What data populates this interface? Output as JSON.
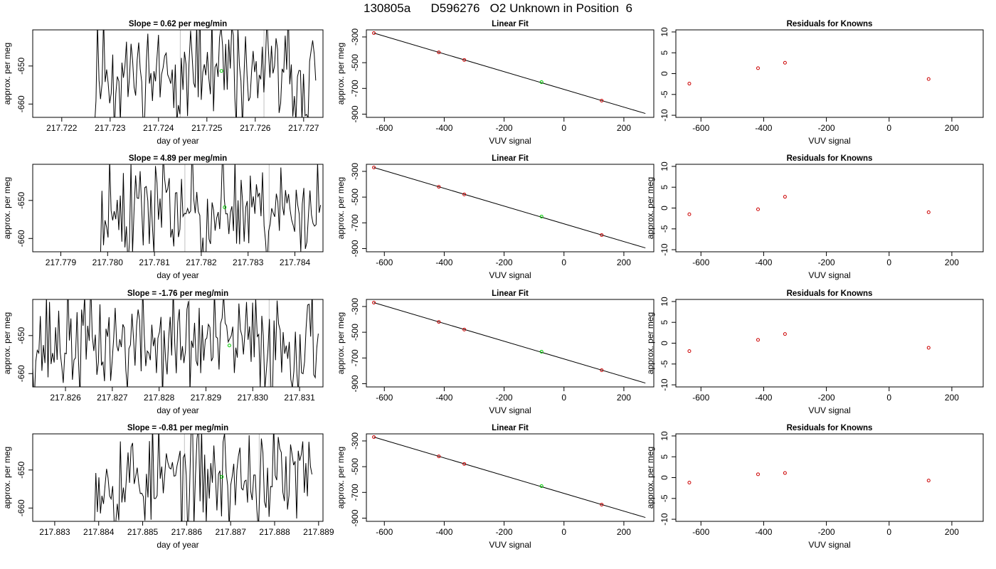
{
  "page": {
    "title": "130805a      D596276   O2 Unknown in Position  6"
  },
  "colors": {
    "trace": "#000000",
    "known_point": "#cc0000",
    "unknown_point": "#00cc00",
    "marker_line": "#c0c0c0"
  },
  "chart_data": [
    {
      "type": "line",
      "title": "Slope =  0.62  per meg/min",
      "xlabel": "day of year",
      "ylabel": "approx. per meg",
      "xlim": [
        217.7214,
        217.7274
      ],
      "ylim": [
        -663.5,
        -640.5
      ],
      "xticks": [
        "217.722",
        "217.723",
        "217.724",
        "217.725",
        "217.726",
        "217.727"
      ],
      "yticks": [
        "-650",
        "-660"
      ],
      "trace_start": 217.72195,
      "trace_end": 217.72725,
      "trace_seed": 11,
      "flat_until": 217.72265,
      "vlines": [
        217.72445,
        217.72618
      ],
      "unknown_point": {
        "x": 217.7253,
        "y": -651.3
      }
    },
    {
      "type": "scatter",
      "title": "Linear Fit",
      "xlabel": "VUV signal",
      "ylabel": "approx. per meg",
      "xlim": [
        -660,
        300
      ],
      "ylim": [
        -925,
        -245
      ],
      "xticks": [
        "-600",
        "-400",
        "-200",
        "0",
        "200"
      ],
      "yticks": [
        "-300",
        "-500",
        "-700",
        "-900"
      ],
      "fit_line": {
        "x": [
          -635,
          272
        ],
        "y": [
          -270,
          -895
        ]
      },
      "knowns": {
        "x": [
          -635,
          -418,
          -333,
          126
        ],
        "y": [
          -270,
          -420,
          -479,
          -795
        ]
      },
      "unknown": {
        "x": -75,
        "y": -651
      }
    },
    {
      "type": "scatter",
      "title": "Residuals for Knowns",
      "xlabel": "VUV signal",
      "ylabel": "",
      "xlim": [
        -680,
        300
      ],
      "ylim": [
        -10.5,
        10.5
      ],
      "xticks": [
        "-600",
        "-400",
        "-200",
        "0",
        "200"
      ],
      "yticks": [
        "-10",
        "-5",
        "0",
        "5",
        "10"
      ],
      "x": [
        -637,
        -418,
        -332,
        126
      ],
      "y": [
        -2.4,
        1.3,
        2.6,
        -1.3
      ]
    },
    {
      "type": "line",
      "title": "Slope =  4.89  per meg/min",
      "xlabel": "day of year",
      "ylabel": "approx. per meg",
      "xlim": [
        217.7784,
        217.7846
      ],
      "ylim": [
        -663.5,
        -640.5
      ],
      "xticks": [
        "217.779",
        "217.780",
        "217.781",
        "217.782",
        "217.783",
        "217.784"
      ],
      "yticks": [
        "-650",
        "-660"
      ],
      "trace_start": 217.77965,
      "trace_end": 217.78455,
      "trace_seed": 23,
      "flat_until": 217.77985,
      "vlines": [
        217.78165,
        217.78345
      ],
      "unknown_point": {
        "x": 217.7825,
        "y": -651.8
      }
    },
    {
      "type": "scatter",
      "title": "Linear Fit",
      "xlabel": "VUV signal",
      "ylabel": "approx. per meg",
      "xlim": [
        -660,
        300
      ],
      "ylim": [
        -925,
        -245
      ],
      "xticks": [
        "-600",
        "-400",
        "-200",
        "0",
        "200"
      ],
      "yticks": [
        "-300",
        "-500",
        "-700",
        "-900"
      ],
      "fit_line": {
        "x": [
          -635,
          272
        ],
        "y": [
          -270,
          -895
        ]
      },
      "knowns": {
        "x": [
          -635,
          -418,
          -333,
          126
        ],
        "y": [
          -270,
          -420,
          -479,
          -795
        ]
      },
      "unknown": {
        "x": -75,
        "y": -651
      }
    },
    {
      "type": "scatter",
      "title": "Residuals for Knowns",
      "xlabel": "VUV signal",
      "ylabel": "approx. per meg",
      "xlim": [
        -680,
        300
      ],
      "ylim": [
        -10.5,
        10.5
      ],
      "xticks": [
        "-600",
        "-400",
        "-200",
        "0",
        "200"
      ],
      "yticks": [
        "-10",
        "-5",
        "0",
        "5",
        "10"
      ],
      "x": [
        -637,
        -418,
        -332,
        126
      ],
      "y": [
        -1.5,
        -0.3,
        2.7,
        -1.0
      ]
    },
    {
      "type": "line",
      "title": "Slope =  -1.76  per meg/min",
      "xlabel": "day of year",
      "ylabel": "approx. per meg",
      "xlim": [
        217.8253,
        217.8315
      ],
      "ylim": [
        -663.5,
        -640.5
      ],
      "xticks": [
        "217.826",
        "217.827",
        "217.828",
        "217.829",
        "217.830",
        "217.831"
      ],
      "yticks": [
        "-650",
        "-660"
      ],
      "trace_start": 217.8253,
      "trace_end": 217.8314,
      "trace_seed": 37,
      "flat_until": 217.8253,
      "vlines": [
        217.82865,
        217.83035
      ],
      "unknown_point": {
        "x": 217.8295,
        "y": -652.6
      }
    },
    {
      "type": "scatter",
      "title": "Linear Fit",
      "xlabel": "VUV signal",
      "ylabel": "approx. per meg",
      "xlim": [
        -660,
        300
      ],
      "ylim": [
        -925,
        -245
      ],
      "xticks": [
        "-600",
        "-400",
        "-200",
        "0",
        "200"
      ],
      "yticks": [
        "-300",
        "-500",
        "-700",
        "-900"
      ],
      "fit_line": {
        "x": [
          -635,
          272
        ],
        "y": [
          -270,
          -895
        ]
      },
      "knowns": {
        "x": [
          -635,
          -418,
          -333,
          126
        ],
        "y": [
          -270,
          -420,
          -479,
          -795
        ]
      },
      "unknown": {
        "x": -75,
        "y": -651
      }
    },
    {
      "type": "scatter",
      "title": "Residuals for Knowns",
      "xlabel": "VUV signal",
      "ylabel": "approx. per meg",
      "xlim": [
        -680,
        300
      ],
      "ylim": [
        -10.5,
        10.5
      ],
      "xticks": [
        "-600",
        "-400",
        "-200",
        "0",
        "200"
      ],
      "yticks": [
        "-10",
        "-5",
        "0",
        "5",
        "10"
      ],
      "x": [
        -637,
        -418,
        -332,
        126
      ],
      "y": [
        -1.9,
        0.8,
        2.2,
        -1.1
      ]
    },
    {
      "type": "line",
      "title": "Slope =  -0.81  per meg/min",
      "xlabel": "day of year",
      "ylabel": "approx. per meg",
      "xlim": [
        217.8825,
        217.8891
      ],
      "ylim": [
        -663.5,
        -640.5
      ],
      "xticks": [
        "217.883",
        "217.884",
        "217.885",
        "217.886",
        "217.887",
        "217.888",
        "217.889"
      ],
      "yticks": [
        "-650",
        "-660"
      ],
      "trace_start": 217.8839,
      "trace_end": 217.88885,
      "trace_seed": 53,
      "flat_until": 217.8839,
      "vlines": [
        217.88595,
        217.88765
      ],
      "unknown_point": {
        "x": 217.8868,
        "y": -651.8
      }
    },
    {
      "type": "scatter",
      "title": "Linear Fit",
      "xlabel": "VUV signal",
      "ylabel": "approx. per meg",
      "xlim": [
        -660,
        300
      ],
      "ylim": [
        -925,
        -245
      ],
      "xticks": [
        "-600",
        "-400",
        "-200",
        "0",
        "200"
      ],
      "yticks": [
        "-300",
        "-500",
        "-700",
        "-900"
      ],
      "fit_line": {
        "x": [
          -635,
          272
        ],
        "y": [
          -270,
          -895
        ]
      },
      "knowns": {
        "x": [
          -635,
          -418,
          -333,
          126
        ],
        "y": [
          -270,
          -420,
          -479,
          -795
        ]
      },
      "unknown": {
        "x": -75,
        "y": -651
      }
    },
    {
      "type": "scatter",
      "title": "Residuals for Knowns",
      "xlabel": "VUV signal",
      "ylabel": "approx. per meg",
      "xlim": [
        -680,
        300
      ],
      "ylim": [
        -10.5,
        10.5
      ],
      "xticks": [
        "-600",
        "-400",
        "-200",
        "0",
        "200"
      ],
      "yticks": [
        "-10",
        "-5",
        "0",
        "5",
        "10"
      ],
      "x": [
        -637,
        -418,
        -332,
        126
      ],
      "y": [
        -1.2,
        0.8,
        1.1,
        -0.7
      ]
    }
  ]
}
